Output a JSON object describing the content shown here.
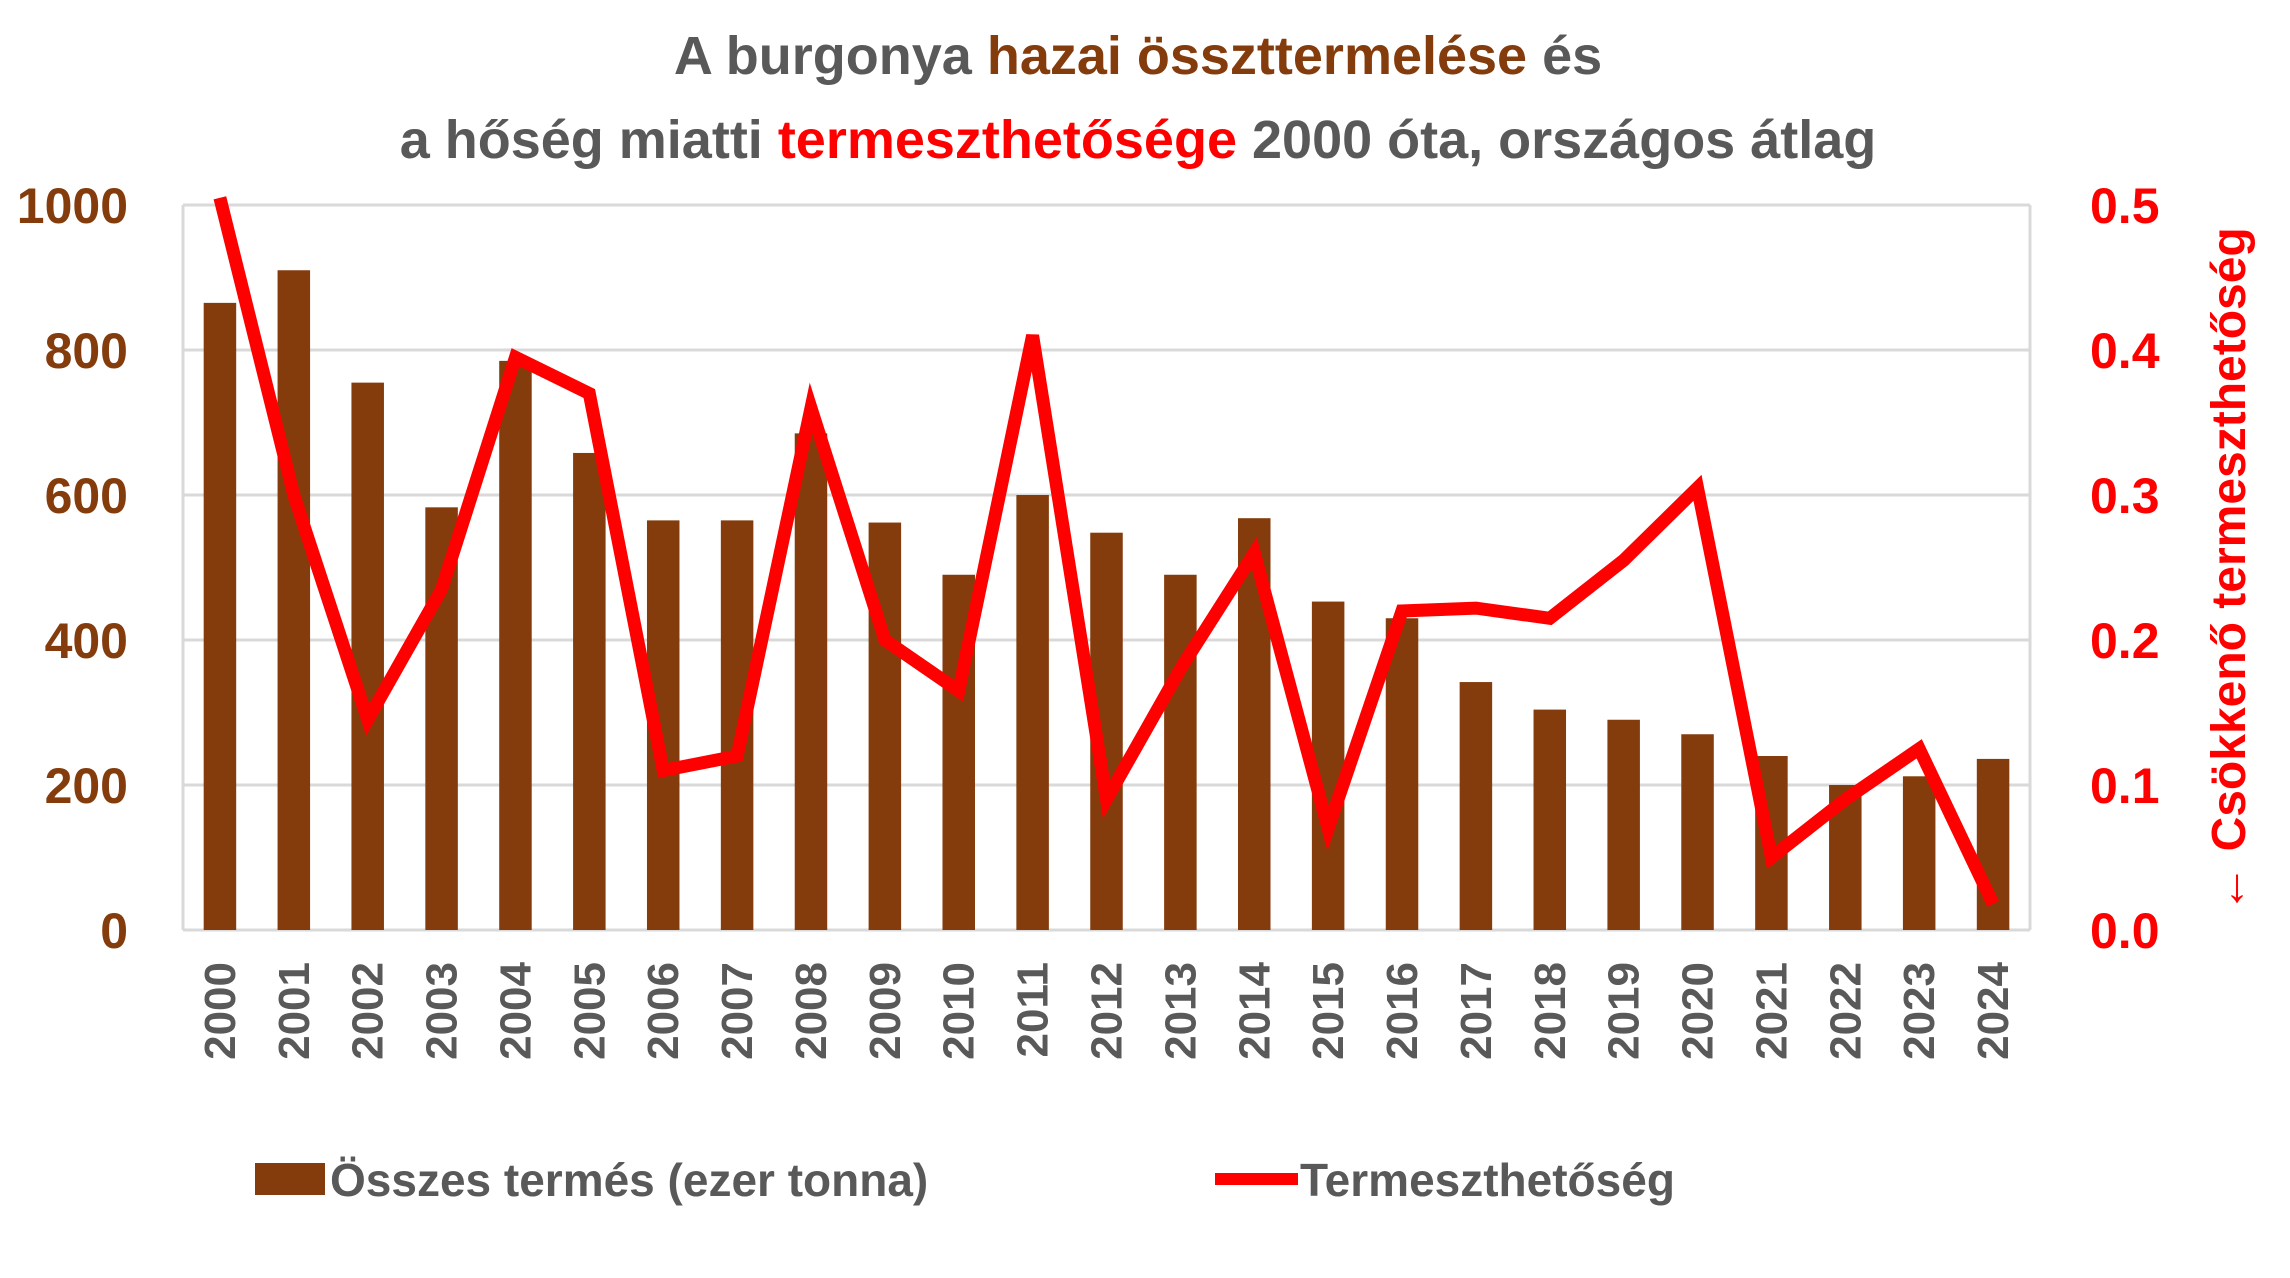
{
  "colors": {
    "bar": "#843C0C",
    "line": "#FF0000",
    "title_gray": "#595959",
    "grid": "#D9D9D9"
  },
  "title": {
    "line1": [
      {
        "text": "A burgonya ",
        "color": "gray"
      },
      {
        "text": "hazai összttermelése",
        "color": "brown"
      },
      {
        "text": " és",
        "color": "gray"
      }
    ],
    "line2": [
      {
        "text": "a hőség miatti ",
        "color": "gray"
      },
      {
        "text": "termeszthetősége",
        "color": "red"
      },
      {
        "text": " 2000 óta, országos átlag",
        "color": "gray"
      }
    ]
  },
  "chart_data": {
    "type": "bar",
    "categories": [
      "2000",
      "2001",
      "2002",
      "2003",
      "2004",
      "2005",
      "2006",
      "2007",
      "2008",
      "2009",
      "2010",
      "2011",
      "2012",
      "2013",
      "2014",
      "2015",
      "2016",
      "2017",
      "2018",
      "2019",
      "2020",
      "2021",
      "2022",
      "2023",
      "2024"
    ],
    "series": [
      {
        "name": "Összes termés (ezer tonna)",
        "type": "bar",
        "axis": "left",
        "values": [
          865,
          910,
          755,
          583,
          785,
          658,
          565,
          565,
          685,
          562,
          490,
          600,
          548,
          490,
          568,
          453,
          430,
          342,
          304,
          290,
          270,
          240,
          200,
          212,
          236
        ]
      },
      {
        "name": "Termeszthetőség",
        "type": "line",
        "axis": "right",
        "values": [
          0.505,
          0.3,
          0.145,
          0.235,
          0.395,
          0.37,
          0.11,
          0.12,
          0.36,
          0.2,
          0.165,
          0.41,
          0.09,
          0.18,
          0.26,
          0.07,
          0.22,
          0.222,
          0.215,
          0.255,
          0.305,
          0.05,
          0.09,
          0.125,
          0.018
        ]
      }
    ],
    "y_left": {
      "min": 0,
      "max": 1000,
      "ticks": [
        "0",
        "200",
        "400",
        "600",
        "800",
        "1000"
      ]
    },
    "y_right": {
      "min": 0,
      "max": 0.5,
      "ticks": [
        "0.0",
        "0.1",
        "0.2",
        "0.3",
        "0.4",
        "0.5"
      ],
      "label": "← Csökkenő termeszthetőség"
    },
    "grid": true,
    "legend_position": "bottom"
  },
  "legend": {
    "bar_label": "Összes termés (ezer tonna)",
    "line_label": "Termeszthetőség"
  }
}
